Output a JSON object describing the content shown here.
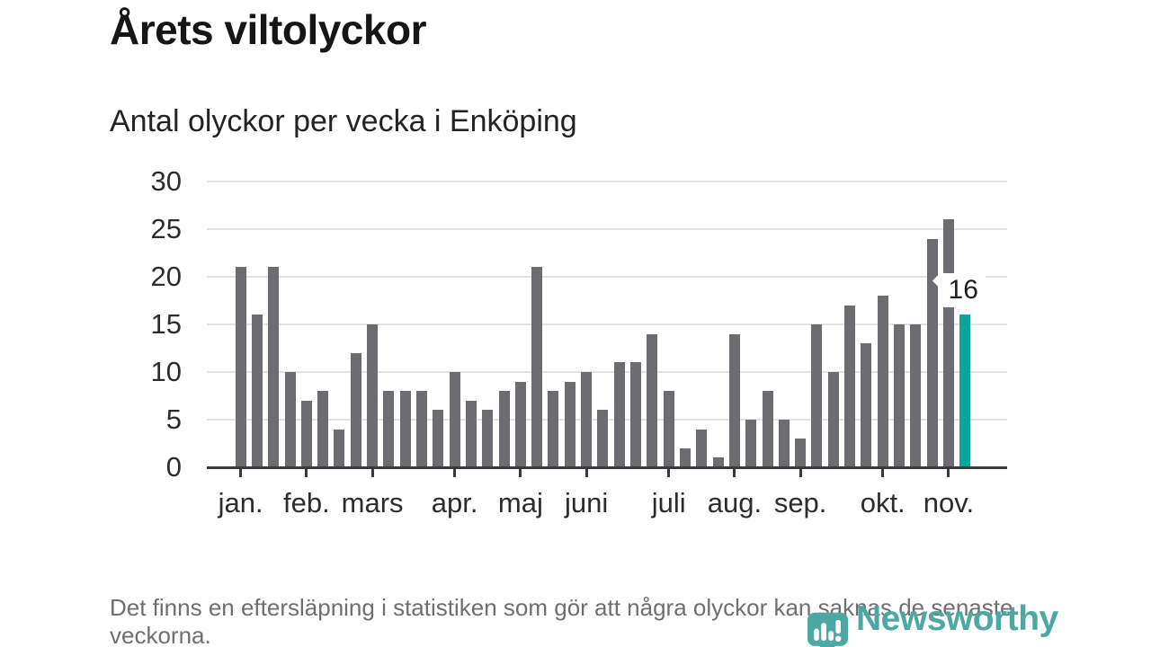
{
  "header": {
    "title": "Årets viltolyckor",
    "subtitle": "Antal olyckor per vecka i Enköping"
  },
  "chart_data": {
    "type": "bar",
    "title": "Årets viltolyckor",
    "subtitle": "Antal olyckor per vecka i Enköping",
    "values": [
      21,
      16,
      21,
      10,
      7,
      8,
      4,
      12,
      15,
      8,
      8,
      8,
      6,
      10,
      7,
      6,
      8,
      9,
      21,
      8,
      9,
      10,
      6,
      11,
      11,
      14,
      8,
      2,
      4,
      1,
      14,
      5,
      8,
      5,
      3,
      15,
      10,
      17,
      13,
      18,
      15,
      15,
      24,
      26,
      16
    ],
    "month_ticks": [
      {
        "label": "jan.",
        "index": 0
      },
      {
        "label": "feb.",
        "index": 4
      },
      {
        "label": "mars",
        "index": 8
      },
      {
        "label": "apr.",
        "index": 13
      },
      {
        "label": "maj",
        "index": 17
      },
      {
        "label": "juni",
        "index": 21
      },
      {
        "label": "juli",
        "index": 26
      },
      {
        "label": "aug.",
        "index": 30
      },
      {
        "label": "sep.",
        "index": 34
      },
      {
        "label": "okt.",
        "index": 39
      },
      {
        "label": "nov.",
        "index": 43
      }
    ],
    "yticks": [
      0,
      5,
      10,
      15,
      20,
      25,
      30
    ],
    "ylim": [
      0,
      30
    ],
    "grid": "horizontal",
    "legend": "none",
    "highlight": {
      "index": 44,
      "label": "16"
    },
    "colors": {
      "bar": "#6d6c72",
      "highlight": "#0aa69c",
      "gridline": "#e2e2e2",
      "axis": "#3a3a3c"
    }
  },
  "footer": {
    "note": "Det finns en eftersläpning i statistiken som gör att några olyckor kan saknas de senaste veckorna."
  },
  "logo": {
    "name": "Newsworthy",
    "color": "#4ba8a2",
    "icon": "speech-bubble-bar-chart-icon"
  }
}
